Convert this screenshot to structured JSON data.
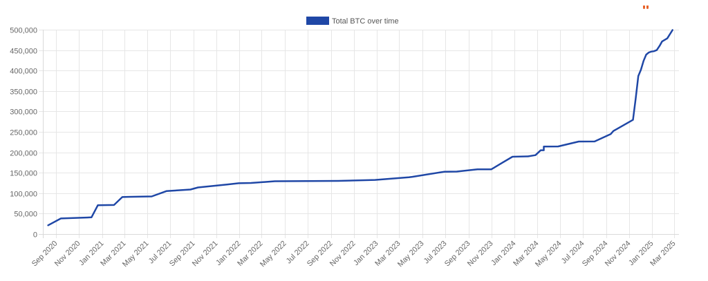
{
  "chart_data": {
    "type": "line",
    "legend_position": "top-center",
    "grid": true,
    "colors": {
      "series": "#1f47a6",
      "grid": "#e6e6e6",
      "axis_text": "#666666"
    },
    "x_ticks": [
      "Sep 2020",
      "Nov 2020",
      "Jan 2021",
      "Mar 2021",
      "May 2021",
      "Jul 2021",
      "Sep 2021",
      "Nov 2021",
      "Jan 2022",
      "Mar 2022",
      "May 2022",
      "Jul 2022",
      "Sep 2022",
      "Nov 2022",
      "Jan 2023",
      "Mar 2023",
      "May 2023",
      "Jul 2023",
      "Sep 2023",
      "Nov 2023",
      "Jan 2024",
      "Mar 2024",
      "May 2024",
      "Jul 2024",
      "Sep 2024",
      "Nov 2024",
      "Jan 2025",
      "Mar 2025"
    ],
    "y_ticks": [
      0,
      50000,
      100000,
      150000,
      200000,
      250000,
      300000,
      350000,
      400000,
      450000,
      500000
    ],
    "ylim": [
      0,
      500000
    ],
    "series": [
      {
        "name": "Total BTC over time",
        "points": [
          [
            "2020-08-11",
            21454
          ],
          [
            "2020-09-14",
            38250
          ],
          [
            "2020-12-04",
            40824
          ],
          [
            "2020-12-21",
            70470
          ],
          [
            "2021-02-02",
            71079
          ],
          [
            "2021-02-24",
            90531
          ],
          [
            "2021-03-12",
            91064
          ],
          [
            "2021-05-13",
            92079
          ],
          [
            "2021-06-21",
            105085
          ],
          [
            "2021-08-24",
            108992
          ],
          [
            "2021-09-13",
            114042
          ],
          [
            "2021-11-29",
            121044
          ],
          [
            "2021-12-30",
            124391
          ],
          [
            "2022-02-01",
            125051
          ],
          [
            "2022-04-05",
            129218
          ],
          [
            "2022-06-28",
            129699
          ],
          [
            "2022-09-20",
            130000
          ],
          [
            "2022-12-27",
            132500
          ],
          [
            "2023-03-27",
            138955
          ],
          [
            "2023-04-05",
            140000
          ],
          [
            "2023-06-28",
            152333
          ],
          [
            "2023-08-01",
            152800
          ],
          [
            "2023-09-25",
            158245
          ],
          [
            "2023-11-01",
            158400
          ],
          [
            "2023-11-30",
            174530
          ],
          [
            "2023-12-27",
            189150
          ],
          [
            "2024-02-06",
            190000
          ],
          [
            "2024-02-26",
            193000
          ],
          [
            "2024-03-11",
            205000
          ],
          [
            "2024-03-19",
            205000
          ],
          [
            "2024-03-19",
            214246
          ],
          [
            "2024-04-26",
            214400
          ],
          [
            "2024-06-20",
            226331
          ],
          [
            "2024-08-01",
            226500
          ],
          [
            "2024-09-13",
            244800
          ],
          [
            "2024-09-20",
            252220
          ],
          [
            "2024-11-11",
            279420
          ],
          [
            "2024-11-18",
            331200
          ],
          [
            "2024-11-25",
            386700
          ],
          [
            "2024-12-02",
            402100
          ],
          [
            "2024-12-09",
            423650
          ],
          [
            "2024-12-16",
            439000
          ],
          [
            "2024-12-23",
            444262
          ],
          [
            "2024-12-30",
            446400
          ],
          [
            "2025-01-06",
            447470
          ],
          [
            "2025-01-13",
            450000
          ],
          [
            "2025-01-21",
            461000
          ],
          [
            "2025-01-27",
            471107
          ],
          [
            "2025-02-10",
            478740
          ],
          [
            "2025-02-24",
            499096
          ]
        ]
      }
    ]
  }
}
